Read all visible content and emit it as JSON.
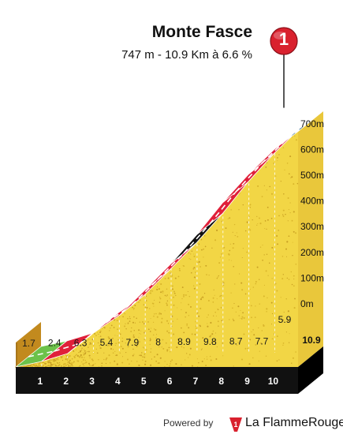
{
  "header": {
    "title": "Monte Fasce",
    "subtitle": "747 m - 10.9 Km à 6.6 %",
    "badge": "1"
  },
  "footer": {
    "powered_by": "Powered by",
    "brand": "La FlammeRouge"
  },
  "colors": {
    "fill": "#F2D645",
    "edge": "#C28A1E",
    "base": "#111111",
    "grade_green": "#6CC24A",
    "grade_red": "#E0203A",
    "grade_blue": "#1F5A82",
    "grade_black": "#111111",
    "badge": "#D9212E"
  },
  "chart_data": {
    "type": "area",
    "title": "Monte Fasce",
    "xlabel": "",
    "ylabel": "",
    "ylim": [
      0,
      747
    ],
    "x_unit": "km",
    "y_ticks": [
      "0m",
      "100m",
      "200m",
      "300m",
      "400m",
      "500m",
      "600m",
      "700m"
    ],
    "y_tick_values": [
      0,
      100,
      200,
      300,
      400,
      500,
      600,
      700
    ],
    "x_ticks": [
      "1",
      "2",
      "3",
      "4",
      "5",
      "6",
      "7",
      "8",
      "9",
      "10"
    ],
    "total_distance_label": "10.9",
    "total_distance": 10.9,
    "segment_gradients": [
      1.7,
      2.4,
      6.3,
      5.4,
      7.9,
      8.0,
      8.9,
      9.8,
      8.7,
      7.7,
      5.9
    ],
    "segment_colors": [
      "green",
      "red",
      "blue",
      "red",
      "red",
      "red",
      "black",
      "red",
      "red",
      "red",
      "blue"
    ],
    "grid": true,
    "legend": "none"
  }
}
